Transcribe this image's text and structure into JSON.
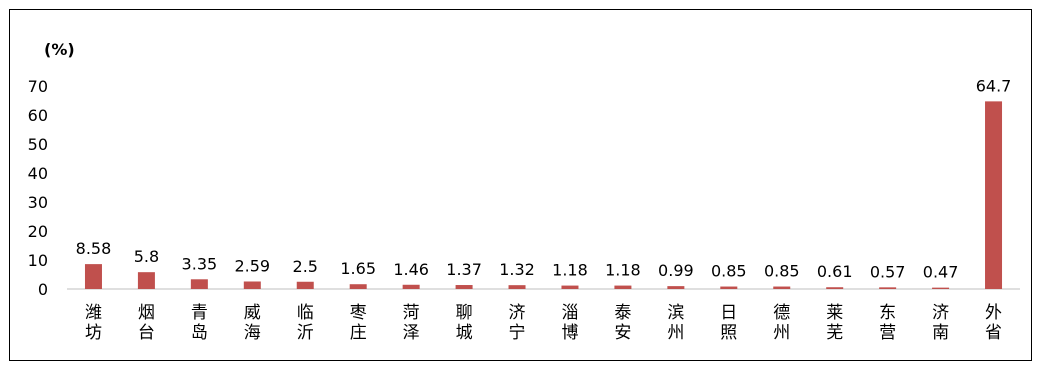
{
  "chart_data": {
    "type": "bar",
    "ylabel": "(%)",
    "ylim": [
      0,
      70
    ],
    "yticks": [
      0,
      10,
      20,
      30,
      40,
      50,
      60,
      70
    ],
    "grid": false,
    "legend": "none",
    "bar_color": "#c0504d",
    "categories": [
      "潍坊",
      "烟台",
      "青岛",
      "威海",
      "临沂",
      "枣庄",
      "菏泽",
      "聊城",
      "济宁",
      "淄博",
      "泰安",
      "滨州",
      "日照",
      "德州",
      "莱芜",
      "东营",
      "济南",
      "外省"
    ],
    "values": [
      8.58,
      5.8,
      3.35,
      2.59,
      2.5,
      1.65,
      1.46,
      1.37,
      1.32,
      1.18,
      1.18,
      0.99,
      0.85,
      0.85,
      0.61,
      0.57,
      0.47,
      64.7
    ],
    "value_labels": [
      "8.58",
      "5.8",
      "3.35",
      "2.59",
      "2.5",
      "1.65",
      "1.46",
      "1.37",
      "1.32",
      "1.18",
      "1.18",
      "0.99",
      "0.85",
      "0.85",
      "0.61",
      "0.57",
      "0.47",
      "64.7"
    ]
  }
}
